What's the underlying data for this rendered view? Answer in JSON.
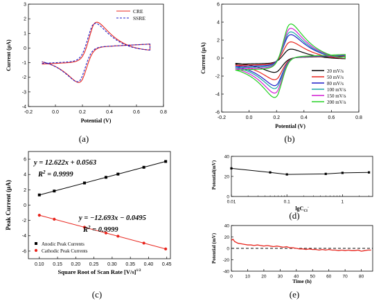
{
  "colors": {
    "axis": "#000000",
    "cre": "#e8241c",
    "ssre": "#1c1cc8",
    "fit_black": "#000000",
    "fit_red": "#e8241c",
    "scan_20": "#000000",
    "scan_50": "#e8241c",
    "scan_80": "#1c1cc8",
    "scan_100": "#1aa6a6",
    "scan_150": "#d21ad2",
    "scan_200": "#22d022",
    "dash": "#000000"
  },
  "chart_data": [
    {
      "id": "a",
      "type": "line",
      "panel_label": "(a)",
      "xlabel": "Potential (V)",
      "ylabel": "Current (μA)",
      "xlim": [
        -0.2,
        0.8
      ],
      "ylim": [
        -4,
        3
      ],
      "xticks": [
        -0.2,
        0.0,
        0.2,
        0.4,
        0.6,
        0.8
      ],
      "xtick_labels": [
        "-0.2",
        "0.0",
        "0.2",
        "0.4",
        "0.6",
        "0.8"
      ],
      "yticks": [
        -4,
        -3,
        -2,
        -1,
        0,
        1,
        2,
        3
      ],
      "ytick_labels": [
        "-4",
        "-3",
        "-2",
        "-1",
        "0",
        "1",
        "2",
        "3"
      ],
      "legend_position": "top-right",
      "series": [
        {
          "name": "CRE",
          "style": "solid",
          "anodic_peak": [
            0.28,
            2.3
          ],
          "cathodic_peak": [
            0.2,
            -2.8
          ],
          "start": [
            -0.1,
            -1.1
          ],
          "end": [
            0.7,
            0.45
          ]
        },
        {
          "name": "SSRE",
          "style": "dashed",
          "anodic_peak": [
            0.27,
            2.2
          ],
          "cathodic_peak": [
            0.19,
            -2.75
          ],
          "start": [
            -0.1,
            -1.05
          ],
          "end": [
            0.7,
            0.45
          ]
        }
      ]
    },
    {
      "id": "b",
      "type": "line",
      "panel_label": "(b)",
      "xlabel": "Potential (V)",
      "ylabel": "Current (μA)",
      "xlim": [
        -0.2,
        0.8
      ],
      "ylim": [
        -6,
        6
      ],
      "xticks": [
        -0.2,
        0.0,
        0.2,
        0.4,
        0.6,
        0.8
      ],
      "xtick_labels": [
        "-0.2",
        "0.0",
        "0.2",
        "0.4",
        "0.6",
        "0.8"
      ],
      "yticks": [
        -6,
        -4,
        -2,
        0,
        2,
        4,
        6
      ],
      "ytick_labels": [
        "-6",
        "-4",
        "-2",
        "0",
        "2",
        "4",
        "6"
      ],
      "legend_position": "bottom-right",
      "series": [
        {
          "name": "20 mV/s",
          "ip_a": 1.3,
          "ip_c": -1.9
        },
        {
          "name": "50 mV/s",
          "ip_a": 2.3,
          "ip_c": -2.9
        },
        {
          "name": "80 mV/s",
          "ip_a": 3.3,
          "ip_c": -3.7
        },
        {
          "name": "100 mV/s",
          "ip_a": 3.7,
          "ip_c": -4.1
        },
        {
          "name": "150 mV/s",
          "ip_a": 4.2,
          "ip_c": -4.7
        },
        {
          "name": "200 mV/s",
          "ip_a": 4.8,
          "ip_c": -5.3
        }
      ]
    },
    {
      "id": "c",
      "type": "scatter",
      "panel_label": "(c)",
      "xlabel": "Square Root of Scan Rate [V/s]",
      "xlabel_sup": "1/2",
      "ylabel": "Peak Current (μA)",
      "xlim": [
        0.07,
        0.46
      ],
      "ylim": [
        -7,
        7
      ],
      "xticks": [
        0.1,
        0.15,
        0.2,
        0.25,
        0.3,
        0.35,
        0.4,
        0.45
      ],
      "xtick_labels": [
        "0.10",
        "0.15",
        "0.20",
        "0.25",
        "0.30",
        "0.35",
        "0.40",
        "0.45"
      ],
      "yticks": [
        -6,
        -4,
        -2,
        0,
        2,
        4,
        6
      ],
      "ytick_labels": [
        "-6",
        "-4",
        "-2",
        "0",
        "2",
        "4",
        "6"
      ],
      "legend_position": "bottom-left",
      "x": [
        0.1,
        0.141,
        0.224,
        0.283,
        0.316,
        0.387,
        0.447
      ],
      "series": [
        {
          "name": "Anodic Peak Currents",
          "values": [
            1.33,
            1.84,
            2.89,
            3.63,
            4.05,
            4.94,
            5.7
          ],
          "marker": "square",
          "fit": {
            "slope": 12.622,
            "intercept": 0.0563
          }
        },
        {
          "name": "Cathodic Peak Currents",
          "values": [
            -1.32,
            -1.84,
            -2.89,
            -3.64,
            -4.06,
            -4.96,
            -5.72
          ],
          "marker": "circle",
          "fit": {
            "slope": -12.693,
            "intercept": -0.0495
          }
        }
      ],
      "annotations": [
        {
          "eq_prefix": "y = 12.622",
          "eq_suffix": " + 0.0563",
          "r2_value": " = 0.9999"
        },
        {
          "eq_prefix": "y = −12.693",
          "eq_suffix": " − 0.0495",
          "r2_value": " = 0.9999"
        }
      ]
    },
    {
      "id": "d",
      "type": "line",
      "panel_label": "(d)",
      "xlabel": "lgC",
      "xlabel_sub": "Cl",
      "xlabel_sup": "-",
      "ylabel": "Potential(mV)",
      "x_scale": "log",
      "xlim": [
        0.01,
        3.5
      ],
      "ylim": [
        0,
        40
      ],
      "xticks": [
        0.01,
        0.1,
        1
      ],
      "xtick_labels": [
        "0.01",
        "0.1",
        "1"
      ],
      "yticks": [
        0,
        20,
        40
      ],
      "ytick_labels": [
        "0",
        "20",
        "40"
      ],
      "x": [
        0.01,
        0.05,
        0.1,
        0.5,
        1,
        3
      ],
      "values": [
        28,
        24,
        22,
        22.5,
        23.5,
        24
      ]
    },
    {
      "id": "e",
      "type": "line",
      "panel_label": "(e)",
      "xlabel": "Time (h)",
      "ylabel": "Potential (mV)",
      "xlim": [
        0,
        87
      ],
      "ylim": [
        -40,
        40
      ],
      "xticks": [
        0,
        10,
        20,
        30,
        40,
        50,
        60,
        70,
        80
      ],
      "xtick_labels": [
        "0",
        "10",
        "20",
        "30",
        "40",
        "50",
        "60",
        "70",
        "80"
      ],
      "yticks": [
        -40,
        -20,
        0,
        20,
        40
      ],
      "ytick_labels": [
        "-40",
        "-20",
        "0",
        "20",
        "40"
      ],
      "reference_line": 0,
      "x": [
        0,
        1,
        2,
        4,
        6,
        8,
        10,
        12,
        14,
        16,
        18,
        20,
        22,
        24,
        26,
        28,
        30,
        32,
        34,
        36,
        38,
        40,
        42,
        44,
        46,
        48,
        50,
        52,
        54,
        56,
        58,
        60,
        62,
        64,
        66,
        68,
        70,
        72,
        74,
        76,
        78,
        80,
        82,
        84,
        86
      ],
      "values": [
        14,
        16,
        12,
        9,
        8,
        7,
        6,
        6,
        5,
        6,
        5,
        4,
        5,
        4,
        3,
        4,
        3,
        2,
        3,
        1,
        1,
        0,
        -1,
        -1,
        -2,
        -1,
        -2,
        -2,
        -3,
        -2,
        -3,
        -2,
        -3,
        -3,
        -4,
        -3,
        -4,
        -3,
        -4,
        -4,
        -3,
        -5,
        -4,
        -3,
        -3
      ]
    }
  ]
}
